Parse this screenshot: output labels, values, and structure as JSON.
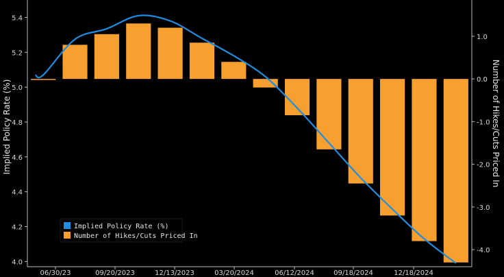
{
  "chart_data": {
    "type": "bar",
    "title": "",
    "x_tick_labels": [
      "06/30/23",
      "09/20/2023",
      "12/13/2023",
      "03/20/2024",
      "06/12/2024",
      "09/18/2024",
      "12/18/2024"
    ],
    "meeting_count": 14,
    "series": [
      {
        "name": "Implied Policy Rate (%)",
        "type": "line",
        "color": "#1f8de0",
        "axis": "left",
        "x": [
          0.75,
          1,
          2,
          3,
          4,
          5,
          6,
          7,
          8,
          9,
          10,
          11,
          12,
          13,
          14
        ],
        "values": [
          5.07,
          5.07,
          5.275,
          5.335,
          5.41,
          5.38,
          5.28,
          5.18,
          5.06,
          4.88,
          4.68,
          4.48,
          4.3,
          4.13,
          3.99
        ]
      },
      {
        "name": "Number of Hikes/Cuts Priced In",
        "type": "bar",
        "color": "#f7a030",
        "axis": "right",
        "x": [
          1,
          2,
          3,
          4,
          5,
          6,
          7,
          8,
          9,
          10,
          11,
          12,
          13,
          14
        ],
        "values": [
          0.0,
          0.8,
          1.05,
          1.3,
          1.2,
          0.85,
          0.4,
          -0.2,
          -0.85,
          -1.65,
          -2.45,
          -3.2,
          -3.8,
          -4.3
        ]
      }
    ],
    "left_axis": {
      "label": "Implied Policy Rate (%)",
      "ticks": [
        "4.0",
        "4.2",
        "4.4",
        "4.6",
        "4.8",
        "5.0",
        "5.2",
        "5.4"
      ],
      "ylim": [
        3.97,
        5.5
      ]
    },
    "right_axis": {
      "label": "Number of Hikes/Cuts Priced In",
      "ticks": [
        "-4.0",
        "-3.0",
        "-2.0",
        "-1.0",
        "0.0",
        "1.0"
      ],
      "ylim": [
        -4.4,
        1.85
      ]
    },
    "legend": {
      "placement": "bottom-left",
      "entries": [
        "Implied Policy Rate (%)",
        "Number of Hikes/Cuts Priced In"
      ]
    },
    "grid": false
  }
}
